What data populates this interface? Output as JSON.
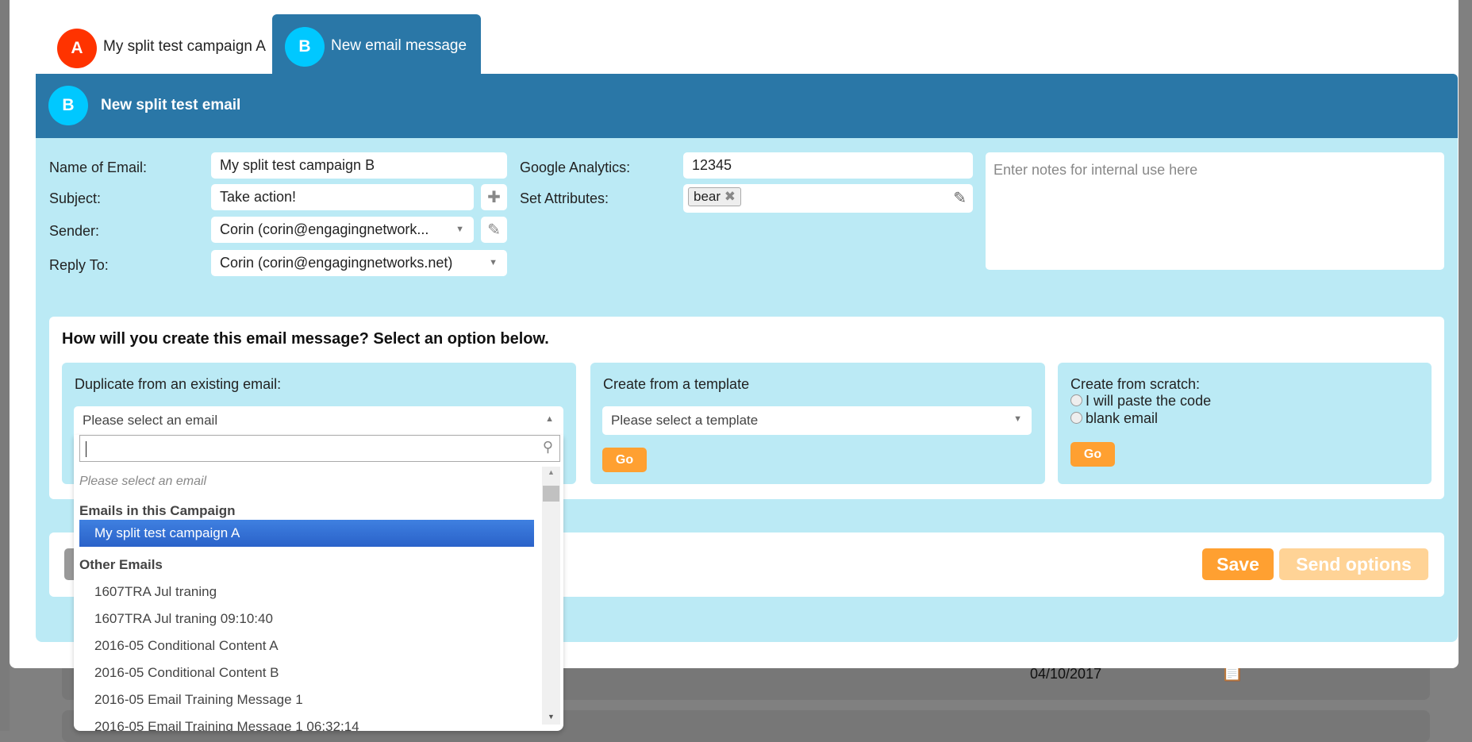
{
  "background": {
    "date": "04/10/2017"
  },
  "tabs": [
    {
      "badge": "A",
      "label": "My split test campaign A",
      "color": "#ff3300"
    },
    {
      "badge": "B",
      "label": "New email message",
      "color": "#00c8ff",
      "active": true
    }
  ],
  "header": {
    "badge": "B",
    "title": "New split test email"
  },
  "form": {
    "name_label": "Name of Email:",
    "name_value": "My split test campaign B",
    "subject_label": "Subject:",
    "subject_value": "Take action!",
    "sender_label": "Sender:",
    "sender_value": "Corin (corin@engagingnetwork...",
    "reply_label": "Reply To:",
    "reply_value": "Corin (corin@engagingnetworks.net)",
    "ga_label": "Google Analytics:",
    "ga_value": "12345",
    "attr_label": "Set Attributes:",
    "attr_tag": "bear",
    "notes_placeholder": "Enter notes for internal use here"
  },
  "create": {
    "heading": "How will you create this email message? Select an option below.",
    "duplicate": {
      "title": "Duplicate from an existing email:",
      "select_value": "Please select an email"
    },
    "template": {
      "title": "Create from a template",
      "select_value": "Please select a template",
      "go": "Go"
    },
    "scratch": {
      "title": "Create from scratch:",
      "options": [
        "I will paste the code",
        "blank email"
      ],
      "go": "Go"
    }
  },
  "footer": {
    "save": "Save",
    "send_options": "Send options"
  },
  "dropdown": {
    "search_value": "",
    "placeholder_option": "Please select an email",
    "group1": "Emails in this Campaign",
    "selected": "My split test campaign A",
    "group2": "Other Emails",
    "items": [
      "1607TRA Jul traning",
      "1607TRA Jul traning 09:10:40",
      "2016-05 Conditional Content A",
      "2016-05 Conditional Content B",
      "2016-05 Email Training Message 1",
      "2016-05 Email Training Message 1 06:32:14"
    ]
  },
  "colors": {
    "header": "#2a77a7",
    "body": "#bbeaf5",
    "accent": "#ffa031",
    "selected": "#3875d7"
  }
}
